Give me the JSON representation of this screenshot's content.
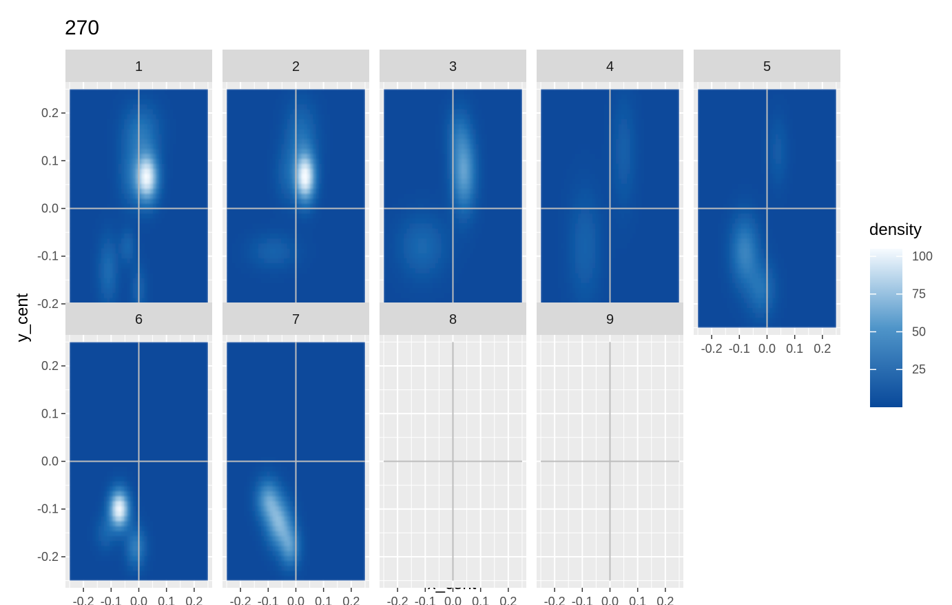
{
  "chart_data": {
    "type": "heatmap",
    "title": "270",
    "xlabel": "x_cent",
    "ylabel": "y_cent",
    "xlim": [
      -0.265,
      0.265
    ],
    "ylim": [
      -0.265,
      0.265
    ],
    "x_ticks": [
      -0.2,
      -0.1,
      0.0,
      0.1,
      0.2
    ],
    "x_tick_labels": [
      "-0.2",
      "-0.1",
      "0.0",
      "0.1",
      "0.2"
    ],
    "y_ticks": [
      0.2,
      0.1,
      0.0,
      -0.1,
      -0.2
    ],
    "y_tick_labels": [
      "0.2",
      "0.1",
      "0.0",
      "-0.1",
      "-0.2"
    ],
    "tile_range": [
      -0.25,
      0.25
    ],
    "reference_lines": {
      "x": 0.0,
      "y": 0.0
    },
    "legend": {
      "title": "density",
      "ticks": [
        100,
        75,
        50,
        25
      ],
      "tick_labels": [
        "100",
        "75",
        "50",
        "25"
      ],
      "range": [
        0,
        105
      ],
      "colors": {
        "low": "#08489a",
        "mid": "#4f95c9",
        "high": "#f7fbff"
      }
    },
    "facets": [
      {
        "label": "1",
        "has_data": true,
        "blobs": [
          {
            "x": 0.03,
            "y": 0.065,
            "sx": 0.028,
            "sy": 0.035,
            "d": 100
          },
          {
            "x": 0.01,
            "y": 0.16,
            "sx": 0.045,
            "sy": 0.04,
            "d": 28
          },
          {
            "x": -0.03,
            "y": 0.07,
            "sx": 0.03,
            "sy": 0.045,
            "d": 20
          },
          {
            "x": -0.11,
            "y": -0.13,
            "sx": 0.025,
            "sy": 0.05,
            "d": 22
          },
          {
            "x": -0.04,
            "y": -0.08,
            "sx": 0.02,
            "sy": 0.025,
            "d": 18
          },
          {
            "x": 0.0,
            "y": -0.17,
            "sx": 0.02,
            "sy": 0.035,
            "d": 16
          }
        ]
      },
      {
        "label": "2",
        "has_data": true,
        "blobs": [
          {
            "x": 0.035,
            "y": 0.065,
            "sx": 0.025,
            "sy": 0.035,
            "d": 100
          },
          {
            "x": 0.02,
            "y": 0.15,
            "sx": 0.04,
            "sy": 0.05,
            "d": 24
          },
          {
            "x": -0.03,
            "y": 0.07,
            "sx": 0.03,
            "sy": 0.04,
            "d": 16
          },
          {
            "x": -0.08,
            "y": -0.09,
            "sx": 0.06,
            "sy": 0.025,
            "d": 16
          }
        ]
      },
      {
        "label": "3",
        "has_data": true,
        "blobs": [
          {
            "x": 0.04,
            "y": 0.075,
            "sx": 0.03,
            "sy": 0.055,
            "d": 55
          },
          {
            "x": 0.02,
            "y": 0.16,
            "sx": 0.03,
            "sy": 0.04,
            "d": 18
          },
          {
            "x": -0.11,
            "y": -0.08,
            "sx": 0.06,
            "sy": 0.045,
            "d": 20
          }
        ]
      },
      {
        "label": "4",
        "has_data": true,
        "blobs": [
          {
            "x": 0.05,
            "y": 0.12,
            "sx": 0.03,
            "sy": 0.08,
            "d": 14
          },
          {
            "x": -0.09,
            "y": -0.08,
            "sx": 0.04,
            "sy": 0.08,
            "d": 16
          }
        ]
      },
      {
        "label": "5",
        "has_data": true,
        "blobs": [
          {
            "x": -0.08,
            "y": -0.09,
            "sx": 0.035,
            "sy": 0.05,
            "d": 38
          },
          {
            "x": -0.02,
            "y": -0.17,
            "sx": 0.035,
            "sy": 0.04,
            "d": 26
          },
          {
            "x": 0.04,
            "y": 0.12,
            "sx": 0.025,
            "sy": 0.05,
            "d": 12
          }
        ]
      },
      {
        "label": "6",
        "has_data": true,
        "blobs": [
          {
            "x": -0.07,
            "y": -0.1,
            "sx": 0.025,
            "sy": 0.028,
            "d": 102
          },
          {
            "x": -0.01,
            "y": -0.18,
            "sx": 0.025,
            "sy": 0.03,
            "d": 34
          },
          {
            "x": -0.12,
            "y": -0.15,
            "sx": 0.025,
            "sy": 0.025,
            "d": 16
          }
        ]
      },
      {
        "label": "7",
        "has_data": true,
        "blobs": [
          {
            "x": -0.1,
            "y": -0.08,
            "sx": 0.03,
            "sy": 0.03,
            "d": 50
          },
          {
            "x": -0.06,
            "y": -0.13,
            "sx": 0.032,
            "sy": 0.035,
            "d": 60
          },
          {
            "x": -0.02,
            "y": -0.18,
            "sx": 0.025,
            "sy": 0.03,
            "d": 45
          }
        ]
      },
      {
        "label": "8",
        "has_data": false,
        "blobs": []
      },
      {
        "label": "9",
        "has_data": false,
        "blobs": []
      }
    ]
  }
}
